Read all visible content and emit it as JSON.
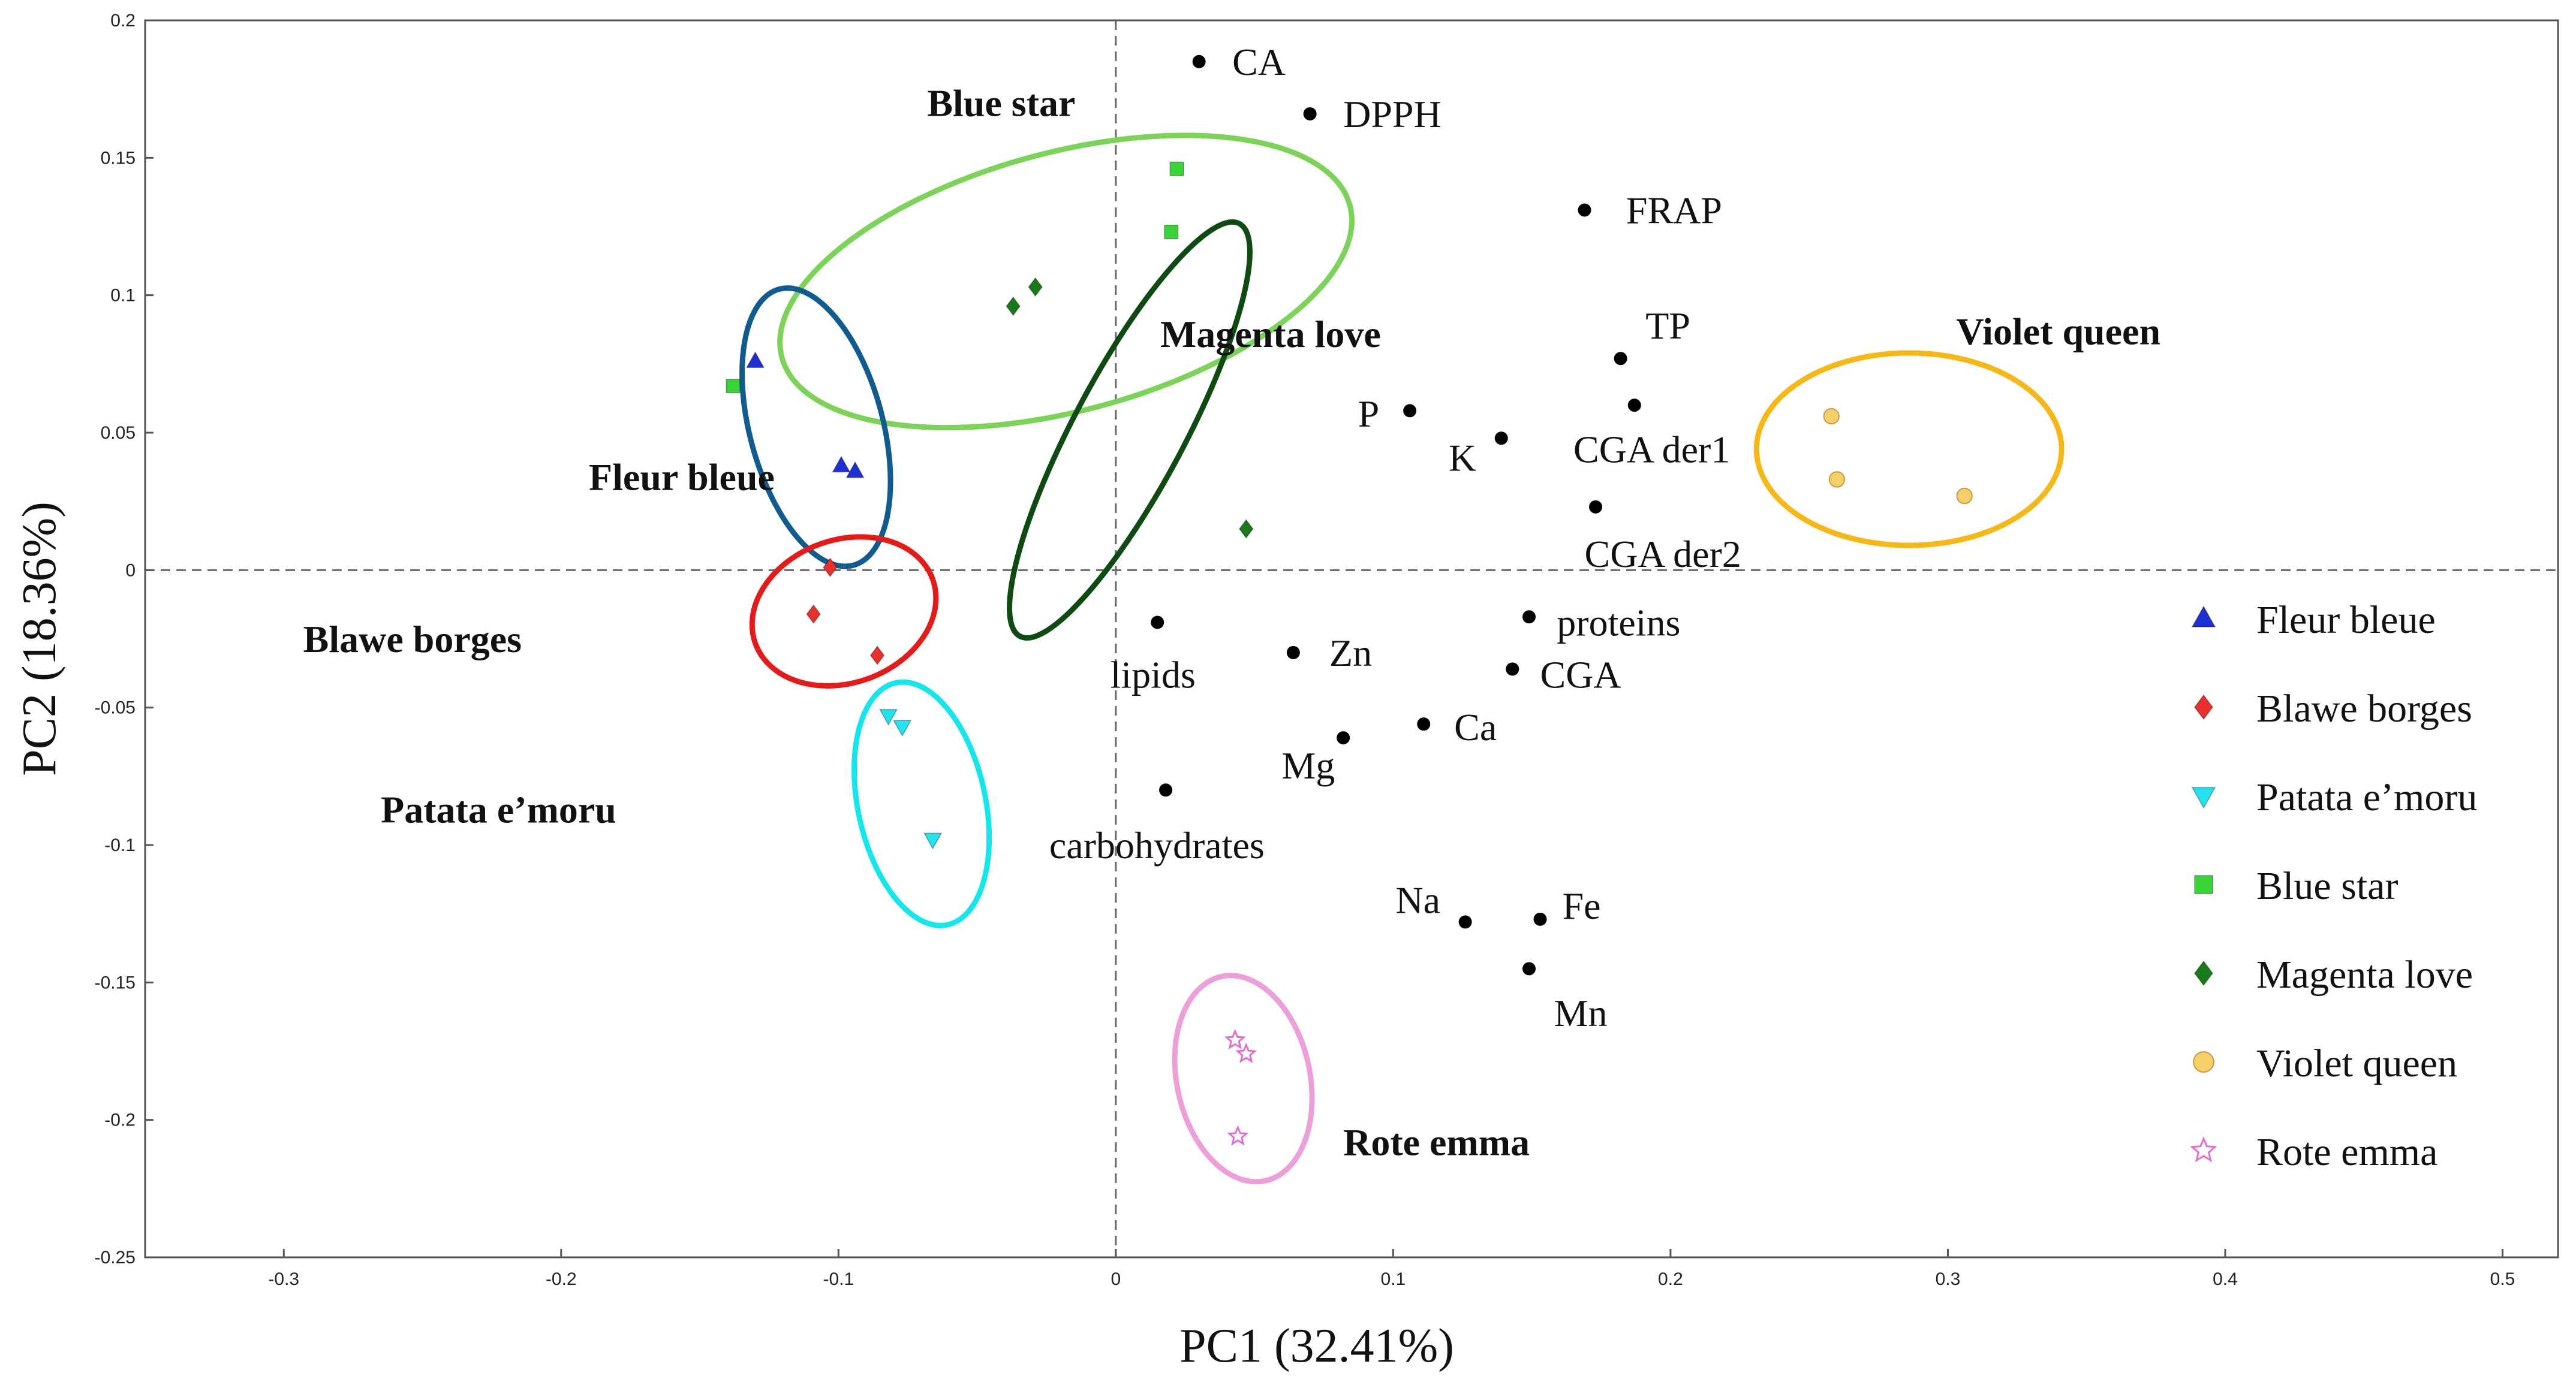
{
  "chart_data": {
    "type": "scatter",
    "title": "",
    "xlabel": "PC1 (32.41%)",
    "ylabel": "PC2 (18.36%)",
    "xlim": [
      -0.35,
      0.52
    ],
    "ylim": [
      -0.25,
      0.2
    ],
    "xticks": [
      -0.3,
      -0.2,
      -0.1,
      0,
      0.1,
      0.2,
      0.3,
      0.4,
      0.5
    ],
    "xtick_labels": [
      "-0.3",
      "-0.2",
      "-0.1",
      "0",
      "0.1",
      "0.2",
      "0.3",
      "0.4",
      "0.5"
    ],
    "yticks": [
      0.2,
      0.15,
      0.1,
      0.05,
      0,
      -0.05,
      -0.1,
      -0.15,
      -0.2,
      -0.25
    ],
    "ytick_labels": [
      "0.2",
      "0.15",
      "0.1",
      "0.05",
      "0",
      "-0.05",
      "-0.1",
      "-0.15",
      "-0.2",
      "-0.25"
    ],
    "grid": false,
    "zero_lines": true,
    "legend_position": "right",
    "series": [
      {
        "name": "Fleur bleue",
        "marker": "triangle-up",
        "color": "#1f2fd6",
        "points": [
          [
            -0.13,
            0.076
          ],
          [
            -0.099,
            0.038
          ],
          [
            -0.094,
            0.036
          ]
        ]
      },
      {
        "name": "Blawe borges",
        "marker": "diamond",
        "color": "#e8312f",
        "points": [
          [
            -0.103,
            0.001
          ],
          [
            -0.109,
            -0.016
          ],
          [
            -0.086,
            -0.031
          ]
        ]
      },
      {
        "name": "Patata e’moru",
        "marker": "triangle-down",
        "color": "#22e3f0",
        "points": [
          [
            -0.082,
            -0.053
          ],
          [
            -0.077,
            -0.057
          ],
          [
            -0.066,
            -0.098
          ]
        ]
      },
      {
        "name": "Blue star",
        "marker": "square",
        "color": "#38d438",
        "points": [
          [
            0.022,
            0.146
          ],
          [
            0.02,
            0.123
          ],
          [
            -0.138,
            0.067
          ]
        ]
      },
      {
        "name": "Magenta love",
        "marker": "diamond",
        "color": "#1a7a1a",
        "points": [
          [
            -0.037,
            0.096
          ],
          [
            -0.029,
            0.103
          ],
          [
            0.047,
            0.015
          ]
        ]
      },
      {
        "name": "Violet queen",
        "marker": "circle",
        "color": "#f5cf6a",
        "points": [
          [
            0.258,
            0.056
          ],
          [
            0.26,
            0.033
          ],
          [
            0.306,
            0.027
          ]
        ]
      },
      {
        "name": "Rote emma",
        "marker": "star",
        "color": "#e06fd0",
        "points": [
          [
            0.043,
            -0.171
          ],
          [
            0.047,
            -0.176
          ],
          [
            0.044,
            -0.206
          ]
        ]
      }
    ],
    "group_labels": [
      {
        "text": "Blue star",
        "color": "#7dd35a",
        "center": [
          -0.018,
          0.105
        ],
        "radii": [
          0.106,
          0.047
        ],
        "angle_deg": -15,
        "label_at": [
          -0.068,
          0.17
        ]
      },
      {
        "text": "Fleur bleue",
        "color": "#115b8e",
        "center": [
          -0.108,
          0.052
        ],
        "radii": [
          0.024,
          0.052
        ],
        "angle_deg": -15,
        "label_at": [
          -0.19,
          0.034
        ]
      },
      {
        "text": "Magenta love",
        "color": "#0f4a12",
        "center": [
          0.005,
          0.051
        ],
        "radii": [
          0.02,
          0.085
        ],
        "angle_deg": 28,
        "label_at": [
          0.016,
          0.086
        ]
      },
      {
        "text": "Blawe borges",
        "color": "#e31b1b",
        "center": [
          -0.098,
          -0.015
        ],
        "radii": [
          0.034,
          0.026
        ],
        "angle_deg": -20,
        "label_at": [
          -0.293,
          -0.025
        ]
      },
      {
        "text": "Patata e’moru",
        "color": "#14e6ec",
        "center": [
          -0.07,
          -0.085
        ],
        "radii": [
          0.023,
          0.045
        ],
        "angle_deg": -12,
        "label_at": [
          -0.265,
          -0.087
        ]
      },
      {
        "text": "Violet queen",
        "color": "#f6b817",
        "center": [
          0.286,
          0.044
        ],
        "radii": [
          0.055,
          0.035
        ],
        "angle_deg": 0,
        "label_at": [
          0.303,
          0.087
        ]
      },
      {
        "text": "Rote emma",
        "color": "#ec9fd8",
        "center": [
          0.046,
          -0.185
        ],
        "radii": [
          0.024,
          0.038
        ],
        "angle_deg": -12,
        "label_at": [
          0.082,
          -0.208
        ]
      }
    ],
    "variables": [
      {
        "name": "CA",
        "x": 0.03,
        "y": 0.185,
        "label_at": [
          0.042,
          0.185
        ],
        "anchor": "start"
      },
      {
        "name": "DPPH",
        "x": 0.07,
        "y": 0.166,
        "label_at": [
          0.082,
          0.166
        ],
        "anchor": "start"
      },
      {
        "name": "FRAP",
        "x": 0.169,
        "y": 0.131,
        "label_at": [
          0.184,
          0.131
        ],
        "anchor": "start"
      },
      {
        "name": "TP",
        "x": 0.182,
        "y": 0.077,
        "label_at": [
          0.191,
          0.089
        ],
        "anchor": "start"
      },
      {
        "name": "P",
        "x": 0.106,
        "y": 0.058,
        "label_at": [
          0.095,
          0.057
        ],
        "anchor": "end"
      },
      {
        "name": "CGA der1",
        "x": 0.187,
        "y": 0.06,
        "label_at": [
          0.165,
          0.044
        ],
        "anchor": "start"
      },
      {
        "name": "K",
        "x": 0.139,
        "y": 0.048,
        "label_at": [
          0.13,
          0.041
        ],
        "anchor": "end"
      },
      {
        "name": "CGA der2",
        "x": 0.173,
        "y": 0.023,
        "label_at": [
          0.169,
          0.006
        ],
        "anchor": "start"
      },
      {
        "name": "proteins",
        "x": 0.149,
        "y": -0.017,
        "label_at": [
          0.159,
          -0.019
        ],
        "anchor": "start"
      },
      {
        "name": "lipids",
        "x": 0.015,
        "y": -0.019,
        "label_at": [
          -0.002,
          -0.038
        ],
        "anchor": "start"
      },
      {
        "name": "Zn",
        "x": 0.064,
        "y": -0.03,
        "label_at": [
          0.077,
          -0.03
        ],
        "anchor": "start"
      },
      {
        "name": "CGA",
        "x": 0.143,
        "y": -0.036,
        "label_at": [
          0.153,
          -0.038
        ],
        "anchor": "start"
      },
      {
        "name": "Ca",
        "x": 0.111,
        "y": -0.056,
        "label_at": [
          0.122,
          -0.057
        ],
        "anchor": "start"
      },
      {
        "name": "Mg",
        "x": 0.082,
        "y": -0.061,
        "label_at": [
          0.079,
          -0.071
        ],
        "anchor": "end"
      },
      {
        "name": "carbohydrates",
        "x": 0.018,
        "y": -0.08,
        "label_at": [
          -0.024,
          -0.1
        ],
        "anchor": "start"
      },
      {
        "name": "Na",
        "x": 0.126,
        "y": -0.128,
        "label_at": [
          0.117,
          -0.12
        ],
        "anchor": "end"
      },
      {
        "name": "Fe",
        "x": 0.153,
        "y": -0.127,
        "label_at": [
          0.161,
          -0.122
        ],
        "anchor": "start"
      },
      {
        "name": "Mn",
        "x": 0.149,
        "y": -0.145,
        "label_at": [
          0.158,
          -0.161
        ],
        "anchor": "start"
      }
    ]
  }
}
